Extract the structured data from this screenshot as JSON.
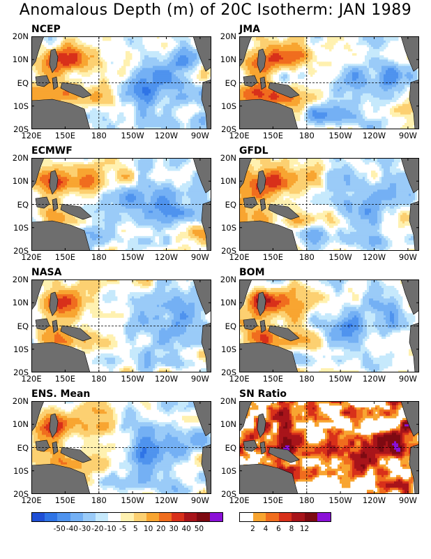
{
  "title": "Anomalous Depth (m) of 20C Isotherm: JAN 1989",
  "axes": {
    "lat_labels": [
      "20N",
      "10N",
      "EQ",
      "10S",
      "20S"
    ],
    "lon_labels": [
      "120E",
      "150E",
      "180",
      "150W",
      "120W",
      "90W"
    ]
  },
  "panels": [
    {
      "name": "NCEP",
      "scheme": "anom"
    },
    {
      "name": "JMA",
      "scheme": "anom"
    },
    {
      "name": "ECMWF",
      "scheme": "anom"
    },
    {
      "name": "GFDL",
      "scheme": "anom"
    },
    {
      "name": "NASA",
      "scheme": "anom"
    },
    {
      "name": "BOM",
      "scheme": "anom"
    },
    {
      "name": "ENS. Mean",
      "scheme": "anom"
    },
    {
      "name": "SN Ratio",
      "scheme": "snr"
    }
  ],
  "colorbar_anom": {
    "colors": [
      "#1f4fd6",
      "#2f74e6",
      "#4f93ee",
      "#74b0f4",
      "#9acbf8",
      "#c6e9fc",
      "#ffffff",
      "#fff1b0",
      "#fcd071",
      "#f8a531",
      "#f06d1e",
      "#d8301a",
      "#a8141a",
      "#7e0a12",
      "#8b10d8"
    ],
    "tick_labels": [
      "-50",
      "-40",
      "-30",
      "-20",
      "-10",
      "-5",
      "5",
      "10",
      "20",
      "30",
      "40",
      "50"
    ]
  },
  "colorbar_snr": {
    "colors": [
      "#ffffff",
      "#f8a531",
      "#f06d1e",
      "#d8301a",
      "#a8141a",
      "#7e0a12",
      "#8b10d8"
    ],
    "tick_labels": [
      "2",
      "4",
      "6",
      "8",
      "12"
    ]
  }
}
